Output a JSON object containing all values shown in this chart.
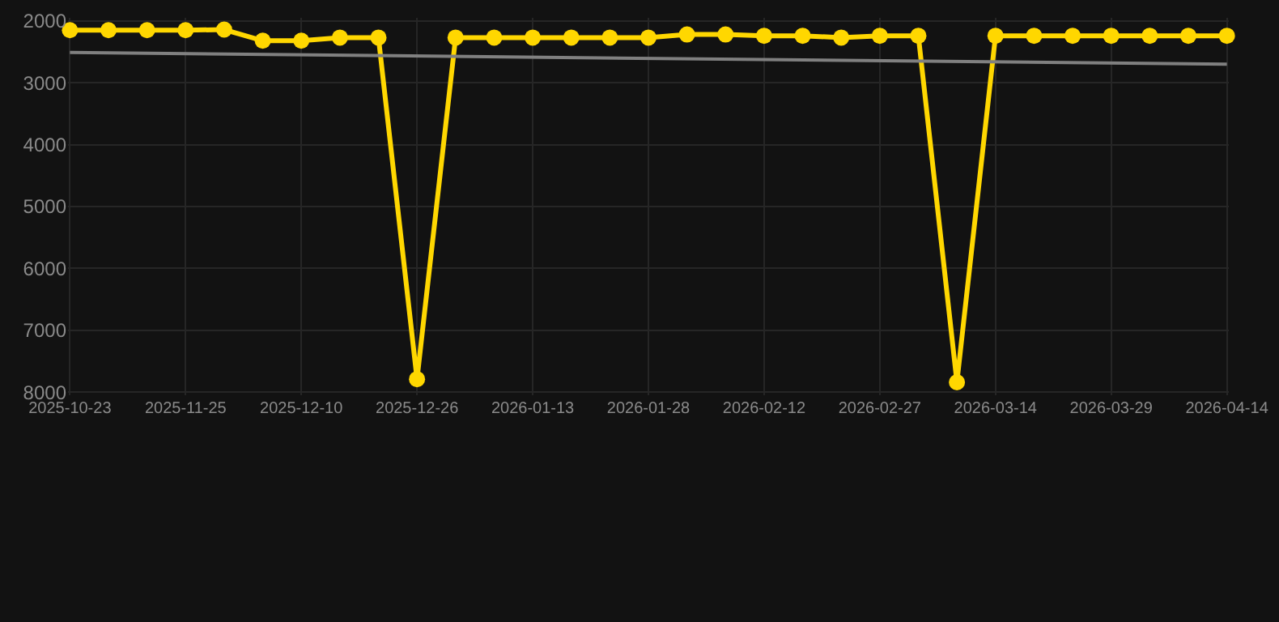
{
  "chart_data": {
    "type": "line",
    "categories": [
      "2025-10-23",
      null,
      null,
      "2025-11-25",
      null,
      null,
      "2025-12-10",
      null,
      null,
      "2025-12-26",
      null,
      null,
      "2026-01-13",
      null,
      null,
      "2026-01-28",
      null,
      null,
      "2026-02-12",
      null,
      null,
      "2026-02-27",
      null,
      null,
      "2026-03-14",
      null,
      null,
      "2026-03-29",
      null,
      null,
      "2026-04-14"
    ],
    "series": [
      {
        "color": "#ffd700",
        "marker": "circle",
        "values": [
          2150,
          2150,
          2150,
          2150,
          2140,
          2320,
          2320,
          2270,
          2270,
          7790,
          2270,
          2270,
          2270,
          2270,
          2270,
          2270,
          2220,
          2220,
          2240,
          2240,
          2270,
          2240,
          2240,
          7840,
          2240,
          2240,
          2240,
          2240,
          2240,
          2240,
          2240
        ]
      },
      {
        "type": "line",
        "color": "#808080",
        "marker": "none",
        "values": [
          2510,
          null,
          null,
          null,
          null,
          null,
          null,
          null,
          null,
          null,
          null,
          null,
          null,
          null,
          null,
          null,
          null,
          null,
          null,
          null,
          null,
          null,
          null,
          null,
          null,
          null,
          null,
          null,
          null,
          null,
          2700
        ]
      }
    ],
    "ylim": [
      8050,
      1950
    ],
    "yticks": [
      2000,
      3000,
      4000,
      5000,
      6000,
      7000,
      8000
    ],
    "grid": true
  }
}
